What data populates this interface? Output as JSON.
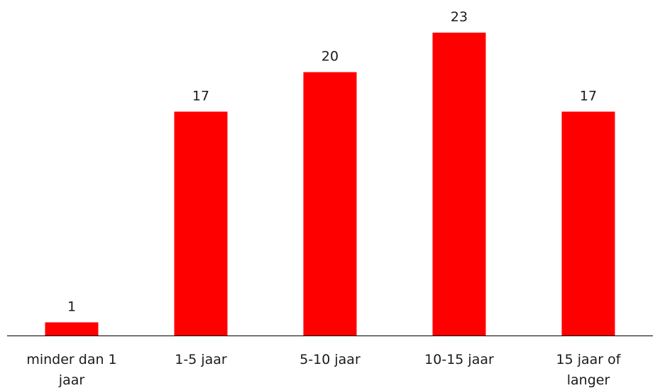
{
  "chart_data": {
    "type": "bar",
    "categories": [
      [
        "minder dan 1",
        "jaar"
      ],
      [
        "1-5 jaar"
      ],
      [
        "5-10 jaar"
      ],
      [
        "10-15 jaar"
      ],
      [
        "15 jaar of",
        "langer"
      ]
    ],
    "values": [
      1,
      17,
      20,
      23,
      17
    ],
    "ylim": [
      0,
      23
    ],
    "grid": false,
    "legend": "none",
    "bar_color": "#ff0000",
    "axis_color": "#000000"
  }
}
